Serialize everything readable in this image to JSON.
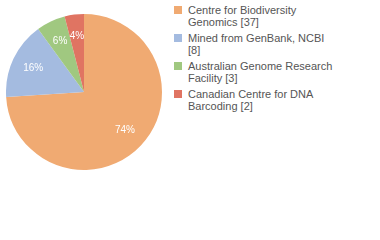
{
  "chart_data": {
    "type": "pie",
    "categories": [
      "Centre for Biodiversity Genomics [37]",
      "Mined from GenBank, NCBI [8]",
      "Australian Genome Research Facility [3]",
      "Canadian Centre for DNA Barcoding [2]"
    ],
    "values": [
      74,
      16,
      6,
      4
    ],
    "value_labels": [
      "74%",
      "16%",
      "6%",
      "4%"
    ],
    "colors": [
      "#f0aa72",
      "#a4bbe0",
      "#a0c880",
      "#e07462"
    ],
    "data_labels": true,
    "legend": "right"
  }
}
